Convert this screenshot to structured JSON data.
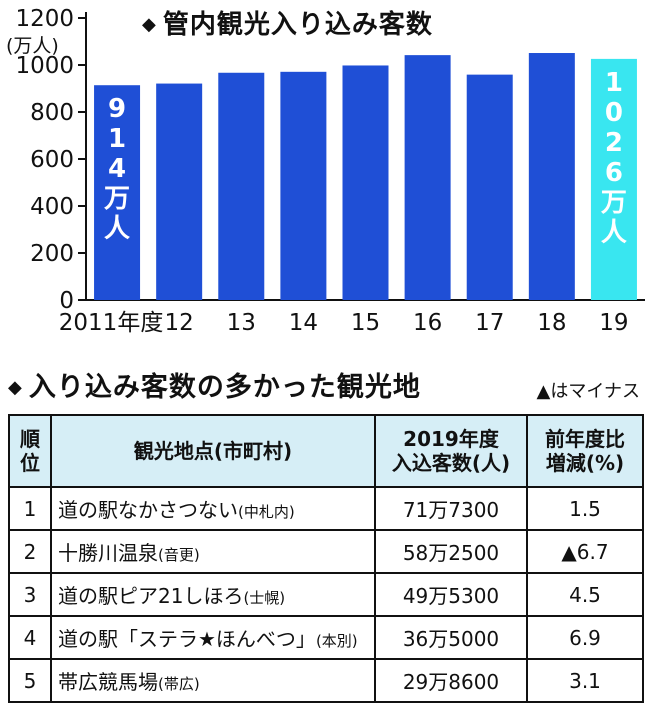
{
  "title": "管内観光入り込み客数",
  "title_marker": "◆",
  "chart_data": {
    "type": "bar",
    "title": "管内観光入り込み客数",
    "ylabel": "(万人)",
    "ylim": [
      0,
      1200
    ],
    "yticks": [
      0,
      200,
      400,
      600,
      800,
      1000,
      1200
    ],
    "categories": [
      "2011年度",
      "12",
      "13",
      "14",
      "15",
      "16",
      "17",
      "18",
      "19"
    ],
    "values": [
      914,
      921,
      967,
      971,
      998,
      1042,
      959,
      1051,
      1026
    ],
    "bar_colors": [
      "#1f4fd6",
      "#1f4fd6",
      "#1f4fd6",
      "#1f4fd6",
      "#1f4fd6",
      "#1f4fd6",
      "#1f4fd6",
      "#1f4fd6",
      "#39e6f0"
    ],
    "annotations": [
      {
        "category": "2011年度",
        "chars": [
          "9",
          "1",
          "4",
          "万",
          "人"
        ]
      },
      {
        "category": "19",
        "chars": [
          "1",
          "0",
          "2",
          "6",
          "万",
          "人"
        ]
      }
    ]
  },
  "section2": {
    "title": "入り込み客数の多かった観光地",
    "marker": "◆",
    "note": "▲はマイナス",
    "headers": {
      "rank": [
        "順",
        "位"
      ],
      "place": "観光地点(市町村)",
      "visitors": [
        "2019年度",
        "入込客数(人)"
      ],
      "change": [
        "前年度比",
        "増減(%)"
      ]
    },
    "rows": [
      {
        "rank": "1",
        "place": "道の駅なかさつない",
        "muni": "(中札内)",
        "visitors": "71万7300",
        "change": "1.5"
      },
      {
        "rank": "2",
        "place": "十勝川温泉",
        "muni": "(音更)",
        "visitors": "58万2500",
        "change": "▲6.7"
      },
      {
        "rank": "3",
        "place": "道の駅ピア21しほろ",
        "muni": "(士幌)",
        "visitors": "49万5300",
        "change": "4.5"
      },
      {
        "rank": "4",
        "place": "道の駅「ステラ★ほんべつ」",
        "muni": "(本別)",
        "visitors": "36万5000",
        "change": "6.9"
      },
      {
        "rank": "5",
        "place": "帯広競馬場",
        "muni": "(帯広)",
        "visitors": "29万8600",
        "change": "3.1"
      }
    ]
  },
  "colors": {
    "bar": "#1f4fd6",
    "highlight_bar": "#39e6f0",
    "header_bg": "#d6eef6"
  }
}
